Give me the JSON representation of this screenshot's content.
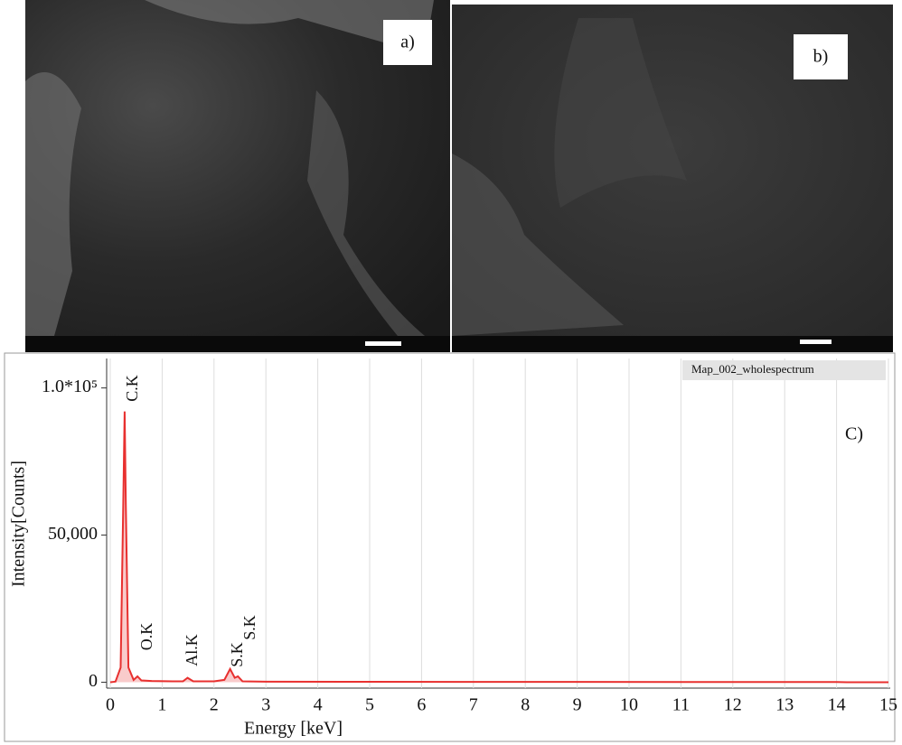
{
  "images": [
    {
      "label": "a)"
    },
    {
      "label": "b)"
    }
  ],
  "chart_data": {
    "type": "line",
    "label": "C)",
    "x_label": "Energy [keV]",
    "y_label": "Intensity[Counts]",
    "x": [
      0,
      0.1,
      0.2,
      0.25,
      0.277,
      0.3,
      0.35,
      0.45,
      0.525,
      0.6,
      0.8,
      1.2,
      1.4,
      1.49,
      1.6,
      2.0,
      2.2,
      2.31,
      2.4,
      2.46,
      2.55,
      3,
      5,
      8,
      11,
      14,
      14.2,
      15
    ],
    "series": [
      {
        "name": "Map_002_wholespectrum",
        "color": "#e8302f",
        "values": [
          0,
          200,
          5000,
          60000,
          92000,
          60000,
          5000,
          800,
          2000,
          600,
          400,
          300,
          300,
          1500,
          300,
          300,
          800,
          4500,
          1500,
          2000,
          300,
          200,
          150,
          100,
          80,
          60,
          0,
          0
        ]
      }
    ],
    "annotations": [
      "C.K",
      "O.K",
      "Al.K",
      "S.K",
      "S.K"
    ],
    "xlim": [
      0,
      15
    ],
    "xticks": [
      0,
      1,
      2,
      3,
      4,
      5,
      6,
      7,
      8,
      9,
      10,
      11,
      12,
      13,
      14,
      15
    ],
    "ylim": [
      -2000,
      110000
    ],
    "yticks": [
      0,
      {
        "value": 50000,
        "label": "50,000"
      },
      {
        "value": 100000,
        "label": "1.0*10⁵"
      }
    ],
    "grid": true
  }
}
